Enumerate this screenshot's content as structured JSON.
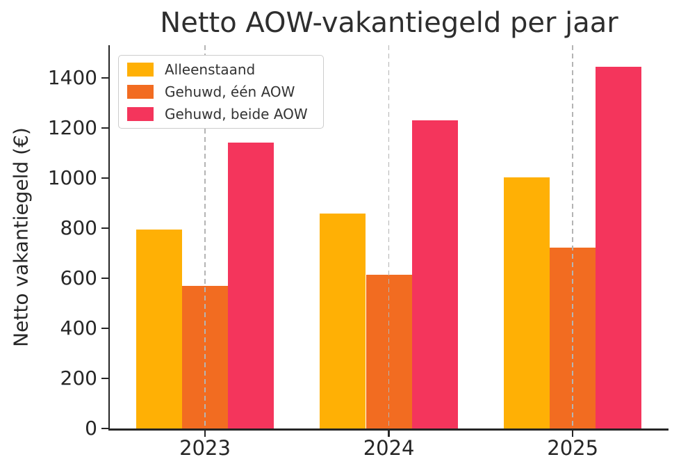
{
  "chart_data": {
    "type": "bar",
    "title": "Netto AOW-vakantiegeld per jaar",
    "ylabel": "Netto vakantiegeld (€)",
    "xlabel": "",
    "categories": [
      "2023",
      "2024",
      "2025"
    ],
    "series": [
      {
        "name": "Alleenstaand",
        "slug": "alleenstaand",
        "color": "#FFB005",
        "values": [
          795,
          857,
          1002
        ]
      },
      {
        "name": "Gehuwd, één AOW",
        "slug": "gehuwd-een-aow",
        "color": "#F26C21",
        "values": [
          570,
          615,
          722
        ]
      },
      {
        "name": "Gehuwd, beide AOW",
        "slug": "gehuwd-beide-aow",
        "color": "#F4355C",
        "values": [
          1140,
          1230,
          1444
        ]
      }
    ],
    "ylim": [
      0,
      1530
    ],
    "yticks": [
      0,
      200,
      400,
      600,
      800,
      1000,
      1200,
      1400
    ],
    "legend_position": "upper-left",
    "grid": "vertical-dashed-at-categories"
  },
  "colors": {
    "axis": "#262626",
    "tick_text": "#262626",
    "title_text": "#2e2e2e",
    "gridline": "#b4b4b4",
    "legend_border": "#cccccc",
    "background": "#ffffff"
  }
}
